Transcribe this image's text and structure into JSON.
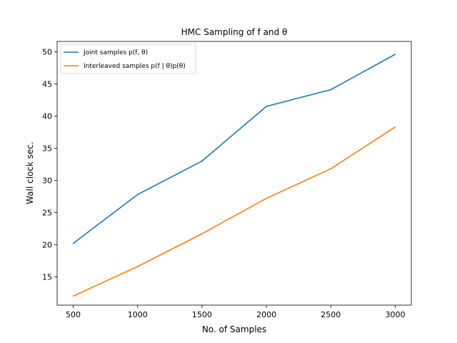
{
  "chart_data": {
    "type": "line",
    "title": "HMC Sampling of f and θ",
    "xlabel": "No. of Samples",
    "ylabel": "Wall clock sec.",
    "x": [
      500,
      1000,
      1500,
      2000,
      2500,
      3000
    ],
    "x_ticks": [
      500,
      1000,
      1500,
      2000,
      2500,
      3000
    ],
    "y_ticks": [
      15,
      20,
      25,
      30,
      35,
      40,
      45,
      50
    ],
    "xlim": [
      375,
      3125
    ],
    "ylim": [
      10.6,
      51.6
    ],
    "grid": false,
    "legend_position": "upper-left",
    "series": [
      {
        "name": "Joint samples p(f, θ)",
        "color": "#1f77b4",
        "values": [
          20.2,
          27.8,
          33.0,
          41.5,
          44.1,
          49.6
        ]
      },
      {
        "name": "Interleaved samples p(f | θ)p(θ)",
        "color": "#ff7f0e",
        "values": [
          12.0,
          16.6,
          21.7,
          27.2,
          31.8,
          38.3
        ]
      }
    ]
  }
}
